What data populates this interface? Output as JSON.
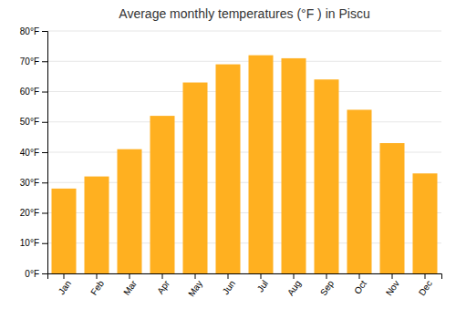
{
  "chart_data": {
    "type": "bar",
    "title": "Average monthly temperatures (°F ) in Piscu",
    "categories": [
      "Jan",
      "Feb",
      "Mar",
      "Apr",
      "May",
      "Jun",
      "Jul",
      "Aug",
      "Sep",
      "Oct",
      "Nov",
      "Dec"
    ],
    "values": [
      28,
      32,
      41,
      52,
      63,
      69,
      72,
      71,
      64,
      54,
      43,
      33
    ],
    "color": "#FFB020",
    "ylim": [
      0,
      80
    ],
    "yticks": [
      {
        "value": 0,
        "label": "0°F"
      },
      {
        "value": 10,
        "label": "10°F"
      },
      {
        "value": 20,
        "label": "20°F"
      },
      {
        "value": 30,
        "label": "30°F"
      },
      {
        "value": 40,
        "label": "40°F"
      },
      {
        "value": 50,
        "label": "50°F"
      },
      {
        "value": 60,
        "label": "60°F"
      },
      {
        "value": 70,
        "label": "70°F"
      },
      {
        "value": 80,
        "label": "80°F"
      }
    ],
    "grid": true
  }
}
